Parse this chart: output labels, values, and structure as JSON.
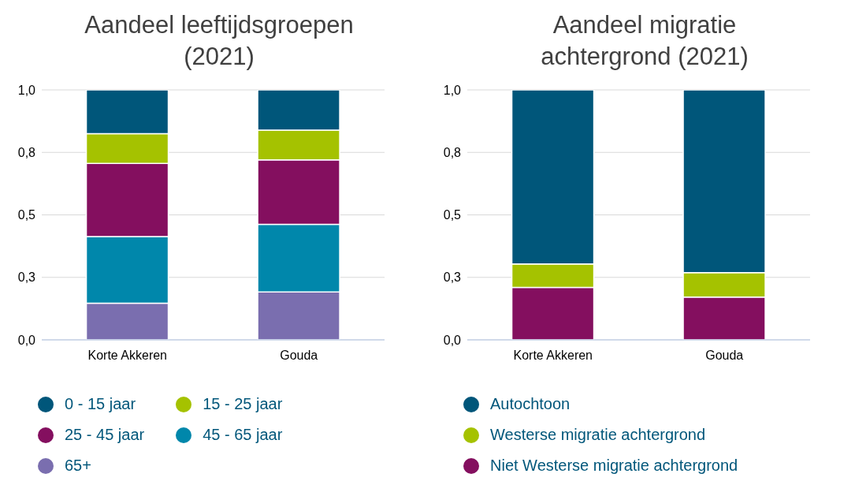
{
  "chart_data": [
    {
      "type": "bar",
      "title": "Aandeel leeftijdsgroepen (2021)",
      "categories": [
        "Korte Akkeren",
        "Gouda"
      ],
      "stacked": true,
      "grid": "y",
      "legend": "bottom",
      "marker": "circle",
      "ylim": [
        0,
        1
      ],
      "yticks": [
        {
          "value": 0,
          "label": "0,0"
        },
        {
          "value": 0.25,
          "label": "0,3"
        },
        {
          "value": 0.5,
          "label": "0,5"
        },
        {
          "value": 0.75,
          "label": "0,8"
        },
        {
          "value": 1,
          "label": "1,0"
        }
      ],
      "series": [
        {
          "name": "65+",
          "color": "#7a6eaf",
          "values": [
            0.147,
            0.192
          ]
        },
        {
          "name": "45 - 65 jaar",
          "color": "#0087ab",
          "values": [
            0.266,
            0.27
          ]
        },
        {
          "name": "25 - 45 jaar",
          "color": "#840f5f",
          "values": [
            0.293,
            0.258
          ]
        },
        {
          "name": "15 - 25 jaar",
          "color": "#a5c200",
          "values": [
            0.119,
            0.119
          ]
        },
        {
          "name": "0 - 15 jaar",
          "color": "#00567a",
          "values": [
            0.175,
            0.161
          ]
        }
      ]
    },
    {
      "type": "bar",
      "title": "Aandeel migratie achtergrond (2021)",
      "categories": [
        "Korte Akkeren",
        "Gouda"
      ],
      "stacked": true,
      "grid": "y",
      "legend": "bottom",
      "marker": "circle",
      "ylim": [
        0,
        1
      ],
      "yticks": [
        {
          "value": 0,
          "label": "0,0"
        },
        {
          "value": 0.25,
          "label": "0,3"
        },
        {
          "value": 0.5,
          "label": "0,5"
        },
        {
          "value": 0.75,
          "label": "0,8"
        },
        {
          "value": 1,
          "label": "1,0"
        }
      ],
      "series": [
        {
          "name": "Niet Westerse migratie achtergrond",
          "color": "#840f5f",
          "values": [
            0.21,
            0.171
          ]
        },
        {
          "name": "Westerse migratie achtergrond",
          "color": "#a5c200",
          "values": [
            0.094,
            0.098
          ]
        },
        {
          "name": "Autochtoon",
          "color": "#00567a",
          "values": [
            0.696,
            0.731
          ]
        }
      ]
    }
  ]
}
